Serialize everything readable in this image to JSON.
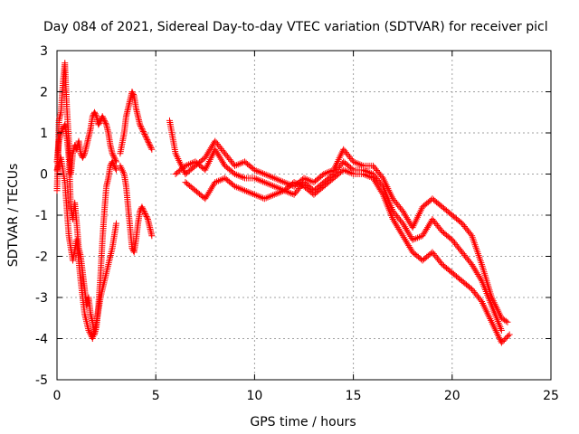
{
  "chart_data": {
    "type": "scatter",
    "title": "Day 084 of 2021, Sidereal Day-to-day VTEC variation (SDTVAR) for receiver picl",
    "xlabel": "GPS time / hours",
    "ylabel": "SDTVAR / TECUs",
    "xlim": [
      0,
      25
    ],
    "ylim": [
      -5,
      3
    ],
    "xticks": [
      0,
      5,
      10,
      15,
      20,
      25
    ],
    "yticks": [
      -5,
      -4,
      -3,
      -2,
      -1,
      0,
      1,
      2,
      3
    ],
    "grid": true,
    "marker": "plus",
    "color": "#ff0000",
    "series": [
      {
        "name": "SDTVAR",
        "segments": [
          {
            "x": [
              0.0,
              0.1,
              0.2,
              0.3,
              0.4,
              0.5,
              0.6,
              0.7,
              0.8,
              0.9,
              1.0,
              1.1,
              1.2,
              1.3,
              1.4,
              1.5,
              1.6,
              1.7,
              1.8,
              1.9,
              2.0,
              2.1,
              2.2,
              2.3,
              2.4,
              2.5,
              2.6,
              2.7,
              2.8,
              2.9,
              3.0
            ],
            "y": [
              -0.4,
              1.3,
              1.5,
              2.2,
              2.7,
              1.6,
              0.8,
              0.0,
              0.5,
              0.7,
              0.6,
              0.8,
              0.5,
              0.4,
              0.5,
              0.7,
              0.9,
              1.1,
              1.4,
              1.5,
              1.4,
              1.2,
              1.3,
              1.4,
              1.3,
              1.2,
              1.0,
              0.7,
              0.5,
              0.4,
              0.3
            ]
          },
          {
            "x": [
              0.0,
              0.1,
              0.2,
              0.3,
              0.4,
              0.5,
              0.6,
              0.7,
              0.8,
              0.9,
              1.0,
              1.1,
              1.2,
              1.3,
              1.4,
              1.5,
              1.6,
              1.7,
              1.8,
              1.9,
              2.0,
              2.1,
              2.2,
              2.3,
              2.4,
              2.5,
              2.6,
              2.7,
              2.8,
              2.9,
              3.0
            ],
            "y": [
              0.3,
              0.8,
              1.0,
              1.1,
              1.2,
              0.9,
              0.4,
              -0.8,
              -1.1,
              -0.7,
              -1.2,
              -1.8,
              -2.0,
              -2.4,
              -2.8,
              -3.2,
              -3.0,
              -3.4,
              -3.6,
              -3.9,
              -3.7,
              -3.2,
              -2.5,
              -1.6,
              -0.9,
              -0.3,
              -0.1,
              0.2,
              0.3,
              0.2,
              0.1
            ]
          },
          {
            "x": [
              0.0,
              0.2,
              0.4,
              0.6,
              0.8,
              1.0,
              1.2,
              1.4,
              1.6,
              1.8,
              2.0,
              2.2,
              2.4,
              2.6,
              2.8,
              3.0
            ],
            "y": [
              0.1,
              0.4,
              -0.2,
              -1.5,
              -2.1,
              -1.6,
              -2.6,
              -3.4,
              -3.8,
              -4.0,
              -3.6,
              -3.0,
              -2.6,
              -2.2,
              -1.8,
              -1.2
            ]
          },
          {
            "x": [
              3.2,
              3.4,
              3.5,
              3.6,
              3.7,
              3.8,
              3.9,
              4.0,
              4.1,
              4.2,
              4.3,
              4.4,
              4.5,
              4.6,
              4.7,
              4.8
            ],
            "y": [
              0.5,
              1.0,
              1.4,
              1.6,
              1.8,
              2.0,
              1.9,
              1.6,
              1.4,
              1.2,
              1.1,
              1.0,
              0.9,
              0.8,
              0.7,
              0.6
            ]
          },
          {
            "x": [
              3.2,
              3.4,
              3.5,
              3.6,
              3.7,
              3.8,
              3.9,
              4.0,
              4.1,
              4.2,
              4.3,
              4.4,
              4.5,
              4.6,
              4.7,
              4.8
            ],
            "y": [
              0.2,
              0.0,
              -0.3,
              -0.8,
              -1.3,
              -1.8,
              -1.9,
              -1.6,
              -1.2,
              -0.9,
              -0.8,
              -0.9,
              -1.0,
              -1.1,
              -1.3,
              -1.5
            ]
          },
          {
            "x": [
              5.7,
              6.0,
              6.5,
              7.0,
              7.5,
              8.0,
              8.5,
              9.0,
              9.5,
              10.0,
              10.5,
              11.0,
              11.5,
              12.0,
              12.5,
              13.0,
              13.5,
              14.0,
              14.5,
              15.0,
              15.5,
              16.0,
              16.5,
              17.0,
              17.5,
              18.0,
              18.5,
              19.0,
              19.5,
              20.0,
              20.5,
              21.0,
              21.5,
              22.0,
              22.5,
              22.8
            ],
            "y": [
              1.3,
              0.5,
              0.0,
              0.2,
              0.4,
              0.8,
              0.5,
              0.2,
              0.3,
              0.1,
              0.0,
              -0.1,
              -0.2,
              -0.3,
              -0.1,
              -0.2,
              0.0,
              0.1,
              0.6,
              0.3,
              0.2,
              0.2,
              -0.1,
              -0.6,
              -0.9,
              -1.3,
              -0.8,
              -0.6,
              -0.8,
              -1.0,
              -1.2,
              -1.5,
              -2.2,
              -3.0,
              -3.5,
              -3.6
            ]
          },
          {
            "x": [
              6.0,
              6.5,
              7.0,
              7.5,
              8.0,
              8.5,
              9.0,
              9.5,
              10.0,
              10.5,
              11.0,
              11.5,
              12.0,
              12.5,
              13.0,
              13.5,
              14.0,
              14.5,
              15.0,
              15.5,
              16.0,
              16.5,
              17.0,
              17.5,
              18.0,
              18.5,
              19.0,
              19.5,
              20.0,
              20.5,
              21.0,
              21.5,
              22.0,
              22.5
            ],
            "y": [
              0.0,
              0.2,
              0.3,
              0.1,
              0.6,
              0.2,
              0.0,
              -0.1,
              -0.1,
              -0.2,
              -0.3,
              -0.4,
              -0.5,
              -0.2,
              -0.4,
              -0.2,
              0.0,
              0.3,
              0.1,
              0.1,
              0.0,
              -0.3,
              -0.9,
              -1.2,
              -1.6,
              -1.5,
              -1.1,
              -1.4,
              -1.6,
              -1.9,
              -2.2,
              -2.6,
              -3.2,
              -3.8
            ]
          },
          {
            "x": [
              6.5,
              7.0,
              7.5,
              8.0,
              8.5,
              9.0,
              9.5,
              10.0,
              10.5,
              11.0,
              11.5,
              12.0,
              12.5,
              13.0,
              13.5,
              14.0,
              14.5,
              15.0,
              15.5,
              16.0,
              16.5,
              17.0,
              17.5,
              18.0,
              18.5,
              19.0,
              19.5,
              20.0,
              20.5,
              21.0,
              21.5,
              22.0,
              22.5,
              22.9
            ],
            "y": [
              -0.2,
              -0.4,
              -0.6,
              -0.2,
              -0.1,
              -0.3,
              -0.4,
              -0.5,
              -0.6,
              -0.5,
              -0.4,
              -0.2,
              -0.3,
              -0.5,
              -0.3,
              -0.1,
              0.1,
              0.0,
              0.0,
              -0.1,
              -0.5,
              -1.1,
              -1.5,
              -1.9,
              -2.1,
              -1.9,
              -2.2,
              -2.4,
              -2.6,
              -2.8,
              -3.1,
              -3.6,
              -4.1,
              -3.9
            ]
          }
        ]
      }
    ]
  }
}
